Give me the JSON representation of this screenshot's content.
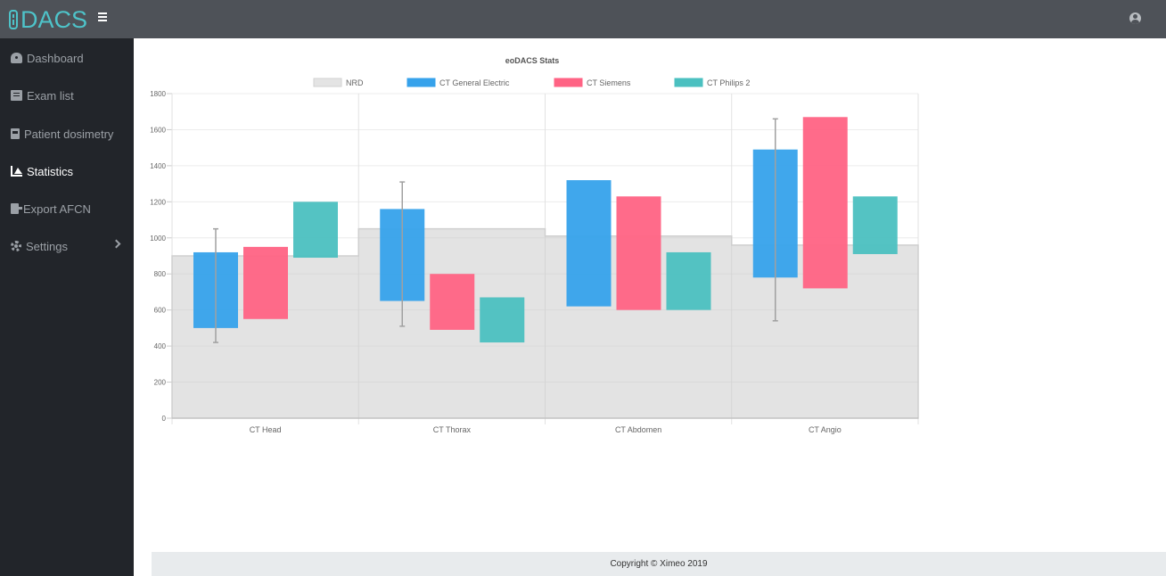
{
  "app": {
    "logo_text": "DACS"
  },
  "sidebar": {
    "items": [
      {
        "label": "Dashboard",
        "icon": "dashboard-icon"
      },
      {
        "label": "Exam list",
        "icon": "list-icon"
      },
      {
        "label": "Patient dosimetry",
        "icon": "book-icon"
      },
      {
        "label": "Statistics",
        "icon": "area-chart-icon",
        "active": true
      },
      {
        "label": "Export AFCN",
        "icon": "export-icon"
      },
      {
        "label": "Settings",
        "icon": "gear-icon",
        "has_submenu": true
      }
    ]
  },
  "footer": {
    "text": "Copyright © Ximeo 2019"
  },
  "colors": {
    "ge": "#36a2eb",
    "siemens": "#ff6384",
    "philips": "#4bc0c0",
    "nrd": "#e4e4e4"
  },
  "chart_data": {
    "type": "bar",
    "title": "eoDACS Stats",
    "categories": [
      "CT Head",
      "CT Thorax",
      "CT Abdomen",
      "CT Angio"
    ],
    "ylim": [
      0,
      1800
    ],
    "yticks": [
      0,
      200,
      400,
      600,
      800,
      1000,
      1200,
      1400,
      1600,
      1800
    ],
    "grid": true,
    "legend_position": "top",
    "nrd": {
      "name": "NRD",
      "values": [
        900,
        1050,
        1010,
        960
      ]
    },
    "series": [
      {
        "name": "CT General Electric",
        "ranges": [
          [
            500,
            920
          ],
          [
            650,
            1160
          ],
          [
            620,
            1320
          ],
          [
            780,
            1490
          ]
        ],
        "whiskers": [
          [
            420,
            1050
          ],
          [
            510,
            1310
          ],
          null,
          [
            540,
            1660
          ]
        ]
      },
      {
        "name": "CT Siemens",
        "ranges": [
          [
            550,
            950
          ],
          [
            490,
            800
          ],
          [
            600,
            1230
          ],
          [
            720,
            1670
          ]
        ]
      },
      {
        "name": "CT Philips 2",
        "ranges": [
          [
            890,
            1200
          ],
          [
            420,
            670
          ],
          [
            600,
            920
          ],
          [
            910,
            1230
          ]
        ]
      }
    ]
  }
}
